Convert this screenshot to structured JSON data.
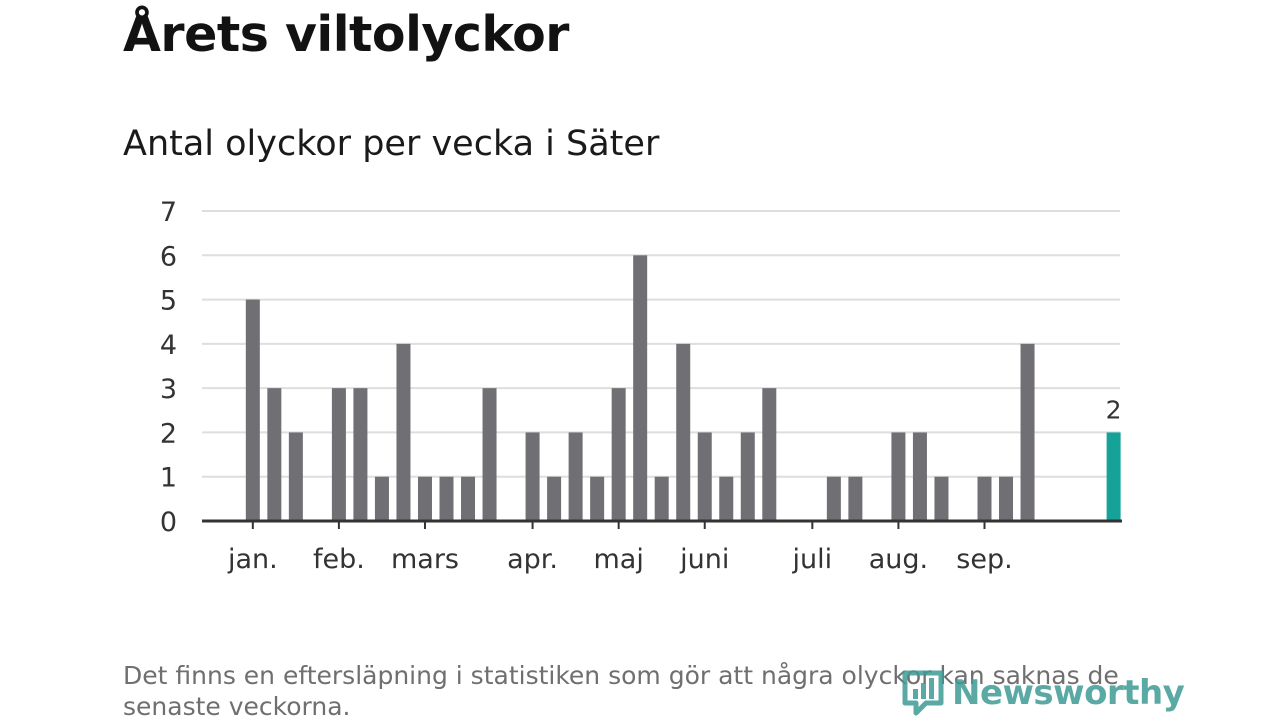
{
  "header": {
    "title": "Årets viltolyckor",
    "subtitle": "Antal olyckor per vecka i Säter"
  },
  "footnote": "Det finns en eftersläpning i statistiken som gör att några olyckor kan saknas de senaste veckorna.",
  "logo": {
    "text": "Newsworthy",
    "icon": "newsworthy-logo-icon"
  },
  "colors": {
    "bar": "#706f74",
    "highlight": "#16a299",
    "grid": "#dedede",
    "axis": "#333333"
  },
  "chart_data": {
    "type": "bar",
    "title": "Antal olyckor per vecka i Säter",
    "xlabel": "",
    "ylabel": "",
    "ylim": [
      0,
      7
    ],
    "yticks": [
      0,
      1,
      2,
      3,
      4,
      5,
      6,
      7
    ],
    "grid": true,
    "x": [
      1,
      2,
      3,
      4,
      5,
      6,
      7,
      8,
      9,
      10,
      11,
      12,
      13,
      14,
      15,
      16,
      17,
      18,
      19,
      20,
      21,
      22,
      23,
      24,
      25,
      26,
      27,
      28,
      29,
      30,
      31,
      32,
      33,
      34,
      35,
      36,
      37,
      38,
      39,
      40,
      41,
      42
    ],
    "values": [
      0,
      5,
      3,
      2,
      0,
      3,
      3,
      1,
      4,
      1,
      1,
      1,
      3,
      0,
      2,
      1,
      2,
      1,
      3,
      6,
      1,
      4,
      2,
      1,
      2,
      3,
      0,
      0,
      1,
      1,
      0,
      2,
      2,
      1,
      0,
      1,
      1,
      4,
      0,
      0,
      0,
      2
    ],
    "highlight_index": 41,
    "highlight_label": "2",
    "month_labels": [
      {
        "label": "jan.",
        "week": 2
      },
      {
        "label": "feb.",
        "week": 6
      },
      {
        "label": "mars",
        "week": 10
      },
      {
        "label": "apr.",
        "week": 15
      },
      {
        "label": "maj",
        "week": 19
      },
      {
        "label": "juni",
        "week": 23
      },
      {
        "label": "juli",
        "week": 28
      },
      {
        "label": "aug.",
        "week": 32
      },
      {
        "label": "sep.",
        "week": 36
      }
    ]
  }
}
